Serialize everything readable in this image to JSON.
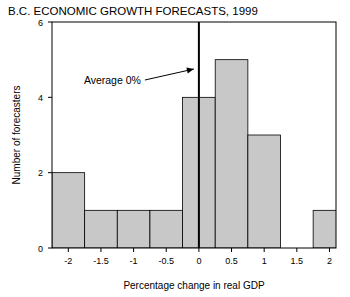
{
  "chart_data": {
    "type": "histogram",
    "title": "B.C. ECONOMIC GROWTH FORECASTS, 1999",
    "x_label": "Percentage change in real GDP",
    "y_label": "Number of forecasters",
    "bins": [
      -2.25,
      -1.75,
      -1.25,
      -0.75,
      -0.25,
      0.25,
      0.75,
      1.25,
      1.75,
      2.25
    ],
    "counts": [
      2,
      1,
      1,
      1,
      4,
      5,
      3,
      0,
      1
    ],
    "color": "#c8c8c8",
    "xlim": [
      -2.25,
      2.1
    ],
    "xticks": [
      -2,
      -1.5,
      -1,
      -0.5,
      0,
      0.5,
      1,
      1.5,
      2
    ],
    "ylim": [
      0,
      6
    ],
    "yticks": [
      0,
      2,
      4,
      6
    ],
    "annotations": [
      {
        "text": "Average 0%",
        "x": 0
      }
    ]
  }
}
